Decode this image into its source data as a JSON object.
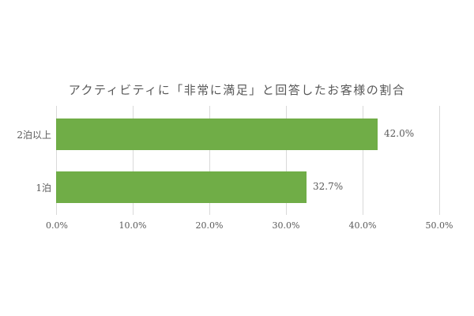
{
  "chart_data": {
    "type": "bar",
    "orientation": "horizontal",
    "title": "アクティビティに「非常に満足」と回答したお客様の割合",
    "categories": [
      "2泊以上",
      "1泊"
    ],
    "values": [
      42.0,
      32.7
    ],
    "value_labels": [
      "42.0%",
      "32.7%"
    ],
    "xlabel": "",
    "ylabel": "",
    "xlim": [
      0,
      50
    ],
    "x_ticks": [
      "0.0%",
      "10.0%",
      "20.0%",
      "30.0%",
      "40.0%",
      "50.0%"
    ],
    "grid": true,
    "legend": false,
    "bar_color": "#70ad47"
  }
}
